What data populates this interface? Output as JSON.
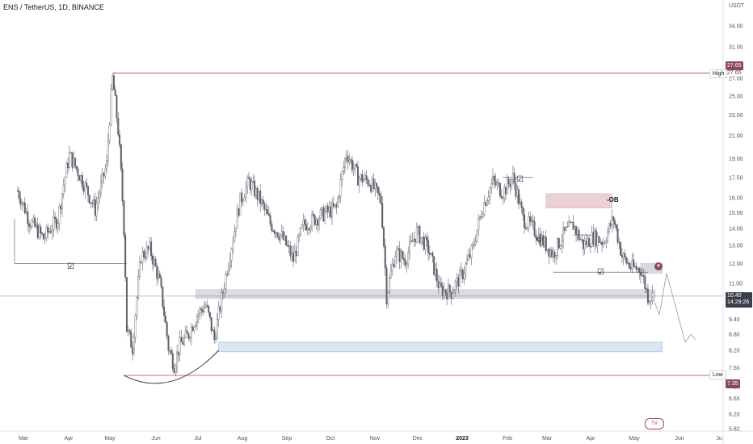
{
  "header": {
    "symbol_title": "ENS / TetherUS, 1D, BINANCE",
    "currency": "USDT"
  },
  "price_tags": {
    "high_tag": "27.65",
    "low_tag": "7.35",
    "current_price": "10.40",
    "countdown": "14:29:26"
  },
  "level_labels": {
    "high_label": "High",
    "high_value": "27.65",
    "low_label": "Low",
    "low_value": "7.35"
  },
  "annotations": {
    "ob_label": "-OB",
    "choch_symbol": "©",
    "check_symbol": "☑",
    "bear_icon": "bear-icon",
    "logo": "TV"
  },
  "colors": {
    "candle": "#5d606b",
    "level_line": "#a8485c",
    "order_block_fill": "#e8c9cf",
    "support_fill": "#d4d6dc",
    "target_fill": "#d6e2f2",
    "target_border": "#8fa7c9",
    "projection": "#9598a1",
    "tag_bg": "#8a4b58"
  },
  "chart_data": {
    "type": "candlestick",
    "title": "ENS / TetherUS, 1D, BINANCE",
    "scale": "log",
    "y_ticks": [
      "34.00",
      "31.00",
      "27.00",
      "25.00",
      "23.00",
      "21.00",
      "19.00",
      "17.50",
      "16.00",
      "15.00",
      "14.00",
      "13.00",
      "12.00",
      "11.00",
      "10.00",
      "9.40",
      "8.80",
      "8.20",
      "7.60",
      "7.00",
      "6.65",
      "6.20",
      "5.82"
    ],
    "x_ticks": [
      "Mar",
      "Apr",
      "May",
      "Jun",
      "Jul",
      "Aug",
      "Sep",
      "Oct",
      "Nov",
      "Dec",
      "2023",
      "Feb",
      "Mar",
      "Apr",
      "May",
      "Jun",
      "Ju"
    ],
    "levels": [
      {
        "name": "High",
        "price": 27.65
      },
      {
        "name": "Low",
        "price": 7.35
      }
    ],
    "zones": [
      {
        "name": "-OB",
        "from": "2023-02-28",
        "to": "2023-04-15",
        "low": 15.3,
        "high": 16.3
      },
      {
        "name": "support",
        "from": "2022-06-29",
        "to": "2023-05-15",
        "low": 10.3,
        "high": 10.7
      },
      {
        "name": "target",
        "from": "2022-07-15",
        "to": "2023-05-20",
        "low": 8.15,
        "high": 8.5
      },
      {
        "name": "entry",
        "from": "2023-05-05",
        "to": "2023-05-20",
        "low": 11.5,
        "high": 12.0
      }
    ],
    "projection": [
      {
        "date": "2023-05-13",
        "price": 10.4
      },
      {
        "date": "2023-05-18",
        "price": 9.6
      },
      {
        "date": "2023-05-23",
        "price": 11.5
      },
      {
        "date": "2023-06-05",
        "price": 8.5
      },
      {
        "date": "2023-06-09",
        "price": 8.8
      },
      {
        "date": "2023-06-12",
        "price": 8.6
      }
    ],
    "close_series": {
      "dates": [
        "2022-02-25",
        "2022-03-05",
        "2022-03-15",
        "2022-03-25",
        "2022-04-02",
        "2022-04-10",
        "2022-04-20",
        "2022-04-28",
        "2022-05-02",
        "2022-05-06",
        "2022-05-10",
        "2022-05-12",
        "2022-05-16",
        "2022-05-22",
        "2022-05-28",
        "2022-06-04",
        "2022-06-10",
        "2022-06-14",
        "2022-06-18",
        "2022-06-24",
        "2022-06-30",
        "2022-07-06",
        "2022-07-12",
        "2022-07-18",
        "2022-07-24",
        "2022-07-30",
        "2022-08-05",
        "2022-08-12",
        "2022-08-20",
        "2022-08-28",
        "2022-09-05",
        "2022-09-12",
        "2022-09-20",
        "2022-09-28",
        "2022-10-05",
        "2022-10-12",
        "2022-10-20",
        "2022-10-28",
        "2022-11-05",
        "2022-11-09",
        "2022-11-15",
        "2022-11-22",
        "2022-11-30",
        "2022-12-08",
        "2022-12-16",
        "2022-12-24",
        "2023-01-01",
        "2023-01-08",
        "2023-01-15",
        "2023-01-22",
        "2023-01-29",
        "2023-02-05",
        "2023-02-12",
        "2023-02-19",
        "2023-02-26",
        "2023-03-05",
        "2023-03-12",
        "2023-03-19",
        "2023-03-26",
        "2023-04-02",
        "2023-04-09",
        "2023-04-16",
        "2023-04-22",
        "2023-04-28",
        "2023-05-05",
        "2023-05-10",
        "2023-05-13"
      ],
      "values": [
        16.5,
        14.5,
        13.4,
        14.6,
        19.3,
        17.5,
        15.2,
        18.5,
        27.0,
        21.5,
        14.0,
        9.0,
        8.3,
        12.4,
        12.8,
        11.0,
        8.3,
        7.7,
        8.4,
        8.8,
        9.6,
        10.0,
        8.6,
        10.6,
        13.0,
        15.8,
        17.2,
        16.0,
        14.3,
        13.5,
        12.2,
        14.2,
        14.6,
        15.0,
        15.3,
        19.5,
        17.5,
        17.2,
        15.8,
        10.4,
        12.6,
        12.2,
        13.8,
        12.8,
        10.7,
        10.6,
        11.5,
        12.8,
        15.4,
        17.2,
        16.4,
        17.5,
        14.6,
        14.0,
        13.2,
        12.5,
        13.6,
        14.2,
        13.0,
        13.5,
        13.2,
        14.6,
        12.4,
        11.8,
        11.7,
        10.4,
        10.4
      ]
    }
  }
}
